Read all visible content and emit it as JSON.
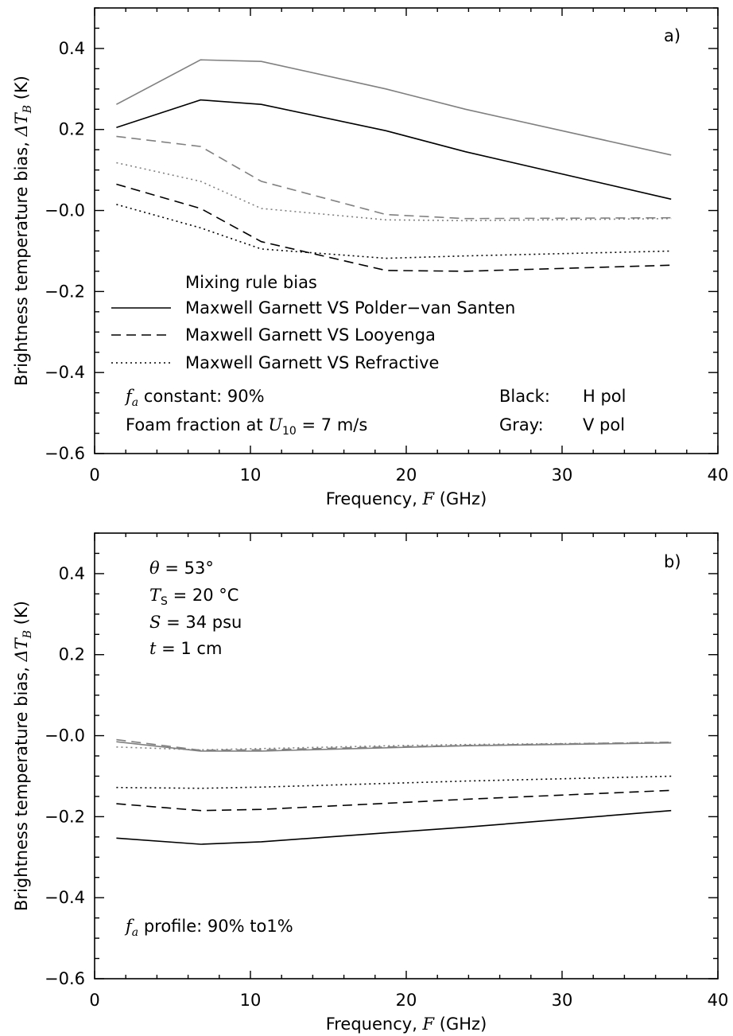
{
  "chart_data": [
    {
      "type": "line",
      "panel_label": "a)",
      "xlabel": {
        "prefix": "Frequency, ",
        "var": "F",
        "suffix": " (GHz)"
      },
      "ylabel": {
        "prefix": "Brightness temperature bias, ",
        "var": "ΔT",
        "sub": "B",
        "suffix": " (K)"
      },
      "xlim": [
        0,
        40
      ],
      "ylim": [
        -0.6,
        0.5
      ],
      "xticks": [
        0,
        10,
        20,
        30,
        40
      ],
      "xtick_labels": [
        "0",
        "10",
        "20",
        "30",
        "40"
      ],
      "yticks": [
        -0.6,
        -0.4,
        -0.2,
        0.0,
        0.2,
        0.4
      ],
      "ytick_labels": [
        "−0.6",
        "−0.4",
        "−0.2",
        "−0.0",
        "0.2",
        "0.4"
      ],
      "x": [
        1.4,
        6.8,
        10.7,
        18.7,
        23.8,
        37.0
      ],
      "series": [
        {
          "name": "Maxwell Garnett VS Polder−van Santen",
          "pol": "H",
          "color": "#000000",
          "dash": "solid",
          "values": [
            0.205,
            0.273,
            0.262,
            0.197,
            0.145,
            0.028
          ]
        },
        {
          "name": "Maxwell Garnett VS Looyenga",
          "pol": "H",
          "color": "#000000",
          "dash": "dashed",
          "values": [
            0.065,
            0.005,
            -0.077,
            -0.148,
            -0.15,
            -0.135
          ]
        },
        {
          "name": "Maxwell Garnett VS Refractive",
          "pol": "H",
          "color": "#000000",
          "dash": "dotted",
          "values": [
            0.015,
            -0.043,
            -0.095,
            -0.118,
            -0.112,
            -0.1
          ]
        },
        {
          "name": "Maxwell Garnett VS Polder−van Santen",
          "pol": "V",
          "color": "#808080",
          "dash": "solid",
          "values": [
            0.262,
            0.372,
            0.368,
            0.3,
            0.25,
            0.137
          ]
        },
        {
          "name": "Maxwell Garnett VS Looyenga",
          "pol": "V",
          "color": "#808080",
          "dash": "dashed",
          "values": [
            0.183,
            0.158,
            0.072,
            -0.01,
            -0.02,
            -0.018
          ]
        },
        {
          "name": "Maxwell Garnett VS Refractive",
          "pol": "V",
          "color": "#808080",
          "dash": "dotted",
          "values": [
            0.118,
            0.072,
            0.005,
            -0.023,
            -0.025,
            -0.02
          ]
        }
      ],
      "legend": {
        "title": "Mixing rule bias",
        "entries": [
          {
            "label": "Maxwell Garnett VS Polder−van Santen",
            "dash": "solid"
          },
          {
            "label": "Maxwell Garnett VS Looyenga",
            "dash": "dashed"
          },
          {
            "label": "Maxwell Garnett VS Refractive",
            "dash": "dotted"
          }
        ],
        "placement": "center-left"
      },
      "annotations": {
        "fa_var": "f",
        "fa_sub": "a",
        "fa_text": " constant: 90%",
        "foam_prefix": "Foam fraction at ",
        "foam_var": "U",
        "foam_sub": "10",
        "foam_suffix": " = 7 m/s",
        "black_key": "Black:",
        "black_val": "H pol",
        "gray_key": "Gray:",
        "gray_val": "V pol"
      }
    },
    {
      "type": "line",
      "panel_label": "b)",
      "xlabel": {
        "prefix": "Frequency, ",
        "var": "F",
        "suffix": " (GHz)"
      },
      "ylabel": {
        "prefix": "Brightness temperature bias, ",
        "var": "ΔT",
        "sub": "B",
        "suffix": " (K)"
      },
      "xlim": [
        0,
        40
      ],
      "ylim": [
        -0.6,
        0.5
      ],
      "xticks": [
        0,
        10,
        20,
        30,
        40
      ],
      "xtick_labels": [
        "0",
        "10",
        "20",
        "30",
        "40"
      ],
      "yticks": [
        -0.6,
        -0.4,
        -0.2,
        0.0,
        0.2,
        0.4
      ],
      "ytick_labels": [
        "−0.6",
        "−0.4",
        "−0.2",
        "−0.0",
        "0.2",
        "0.4"
      ],
      "x": [
        1.4,
        6.8,
        10.7,
        18.7,
        23.8,
        37.0
      ],
      "series": [
        {
          "pol": "H",
          "color": "#000000",
          "dash": "solid",
          "values": [
            -0.253,
            -0.268,
            -0.262,
            -0.24,
            -0.226,
            -0.185
          ]
        },
        {
          "pol": "H",
          "color": "#000000",
          "dash": "dashed",
          "values": [
            -0.168,
            -0.185,
            -0.182,
            -0.167,
            -0.157,
            -0.135
          ]
        },
        {
          "pol": "H",
          "color": "#000000",
          "dash": "dotted",
          "values": [
            -0.128,
            -0.13,
            -0.127,
            -0.118,
            -0.112,
            -0.1
          ]
        },
        {
          "pol": "V",
          "color": "#808080",
          "dash": "solid",
          "values": [
            -0.015,
            -0.038,
            -0.038,
            -0.03,
            -0.025,
            -0.018
          ]
        },
        {
          "pol": "V",
          "color": "#808080",
          "dash": "dashed",
          "values": [
            -0.01,
            -0.036,
            -0.035,
            -0.028,
            -0.024,
            -0.016
          ]
        },
        {
          "pol": "V",
          "color": "#808080",
          "dash": "dotted",
          "values": [
            -0.028,
            -0.035,
            -0.032,
            -0.025,
            -0.022,
            -0.017
          ]
        }
      ],
      "annotations": {
        "theta_var": "θ",
        "theta_text": " = 53°",
        "ts_var": "T",
        "ts_sub": "S",
        "ts_text": " = 20 °C",
        "s_var": "S",
        "s_text": " = 34 psu",
        "t_var": "t",
        "t_text": " = 1 cm",
        "fa_var": "f",
        "fa_sub": "a",
        "fa_text": " profile: 90% to1%"
      }
    }
  ]
}
